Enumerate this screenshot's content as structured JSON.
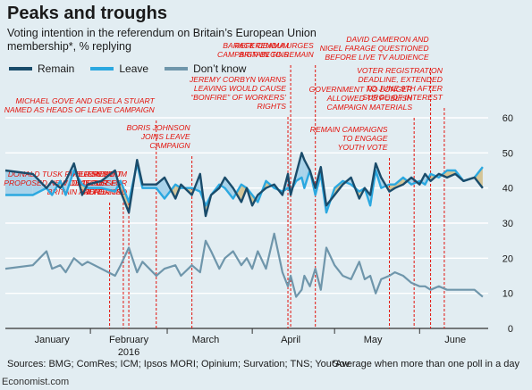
{
  "title": "Peaks and troughs",
  "subtitle": "Voting intention in the referendum on Britain’s European Union membership*, % replying",
  "footer": {
    "sources": "Sources: BMG; ComRes; ICM; Ipsos MORI; Opinium; Survation; TNS; YouGov",
    "note": "*Average when more than one poll in a day",
    "brand": "Economist.com"
  },
  "colors": {
    "remain": "#1a4c6b",
    "leave": "#2ba8e0",
    "dont_know": "#6f96ab",
    "remain_lead_fill": "#a9d3ea",
    "leave_lead_fill": "#d5c596",
    "annotation": "#e3120b",
    "background": "#e2edf2"
  },
  "chart_data": {
    "type": "line",
    "ylim": [
      0,
      60
    ],
    "yticks": [
      0,
      10,
      20,
      30,
      40,
      50,
      60
    ],
    "xlim": [
      0,
      176
    ],
    "x_tick_labels": [
      {
        "label": "January",
        "x": 17
      },
      {
        "label": "February",
        "x": 45
      },
      {
        "label": "March",
        "x": 73
      },
      {
        "label": "April",
        "x": 104
      },
      {
        "label": "May",
        "x": 134
      },
      {
        "label": "June",
        "x": 164
      }
    ],
    "year_label": "2016",
    "x": [
      0,
      10,
      15,
      17,
      20,
      22,
      25,
      28,
      30,
      35,
      40,
      42,
      45,
      48,
      50,
      55,
      58,
      62,
      64,
      68,
      71,
      73,
      75,
      78,
      80,
      83,
      86,
      88,
      90,
      92,
      95,
      98,
      101,
      103,
      104,
      106,
      108,
      109,
      111,
      113,
      115,
      117,
      120,
      123,
      126,
      129,
      131,
      133,
      135,
      137,
      140,
      142,
      145,
      148,
      151,
      153,
      155,
      158,
      161,
      164,
      167,
      171,
      174
    ],
    "series": [
      {
        "name": "Remain",
        "values": [
          45,
          44,
          40,
          42,
          40,
          42,
          47,
          38,
          41,
          42,
          45,
          39,
          33,
          48,
          41,
          41,
          43,
          37,
          41,
          38,
          44,
          32,
          38,
          40,
          43,
          40,
          36,
          40,
          35,
          38,
          40,
          41,
          38,
          44,
          38,
          44,
          50,
          48,
          45,
          40,
          46,
          35,
          38,
          41,
          43,
          37,
          40,
          38,
          47,
          43,
          39,
          40,
          41,
          43,
          41,
          44,
          42,
          44,
          43,
          44,
          42,
          43,
          40
        ]
      },
      {
        "name": "Leave",
        "values": [
          38,
          38,
          40,
          38,
          42,
          38,
          45,
          41,
          40,
          40,
          39,
          42,
          36,
          47,
          40,
          40,
          37,
          41,
          40,
          40,
          39,
          35,
          38,
          41,
          40,
          37,
          41,
          40,
          38,
          36,
          42,
          40,
          39,
          40,
          39,
          42,
          43,
          40,
          45,
          38,
          44,
          33,
          40,
          42,
          41,
          39,
          40,
          35,
          45,
          40,
          41,
          41,
          43,
          41,
          42,
          41,
          44,
          43,
          45,
          45,
          42,
          43,
          46
        ]
      },
      {
        "name": "Don’t know",
        "values": [
          17,
          18,
          22,
          17,
          18,
          16,
          20,
          18,
          19,
          17,
          15,
          18,
          23,
          16,
          19,
          15,
          17,
          18,
          15,
          18,
          16,
          25,
          22,
          17,
          20,
          22,
          18,
          20,
          17,
          22,
          17,
          27,
          16,
          12,
          15,
          9,
          11,
          15,
          12,
          17,
          11,
          23,
          18,
          15,
          14,
          19,
          14,
          15,
          10,
          14,
          15,
          16,
          15,
          13,
          12,
          12,
          11,
          12,
          11,
          11,
          11,
          11,
          9
        ]
      }
    ],
    "annotations": [
      {
        "x": 38,
        "lines": [
          "DONALD TUSK PUBLISHES",
          "PROPOSED NEW DEAL FOR",
          "BRITAIN AND EU"
        ]
      },
      {
        "x": 43,
        "lines": [
          "EU SUMMIT",
          "DISCUSSES",
          "REFORMS"
        ]
      },
      {
        "x": 55,
        "lines": [
          "MICHAEL GOVE AND GISELA STUART",
          "NAMED AS HEADS OF LEAVE CAMPAIGN"
        ]
      },
      {
        "x": 45,
        "lines": [
          "REFERENDUM",
          "DATE SET FOR",
          "JUNE 23RD"
        ]
      },
      {
        "x": 68,
        "lines": [
          "BORIS JOHNSON",
          "JOINS LEAVE",
          "CAMPAIGN"
        ]
      },
      {
        "x": 103,
        "lines": [
          "JEREMY CORBYN WARNS",
          "LEAVING WOULD CAUSE",
          "“BONFIRE” OF WORKERS’",
          "RIGHTS"
        ]
      },
      {
        "x": 104,
        "lines": [
          "REFERENDUM",
          "CAMPAIGN BEGINS"
        ]
      },
      {
        "x": 113,
        "lines": [
          "BARACK OBAMA URGES",
          "BRITAIN TO REMAIN"
        ]
      },
      {
        "x": 140,
        "lines": [
          "REMAIN CAMPAIGNS",
          "TO ENGAGE",
          "YOUTH VOTE"
        ]
      },
      {
        "x": 149,
        "lines": [
          "GOVERNMENT NO LONGER",
          "ALLOWED TO PUBLISH",
          "CAMPAIGN MATERIALS"
        ]
      },
      {
        "x": 155,
        "lines": [
          "DAVID CAMERON AND",
          "NIGEL FARAGE QUESTIONED",
          "BEFORE LIVE TV AUDIENCE"
        ]
      },
      {
        "x": 160,
        "lines": [
          "VOTER REGISTRATION",
          "DEADLINE, EXTENDED",
          "TO JUNE 9TH AFTER",
          "SURGE OF INTEREST"
        ]
      }
    ]
  }
}
